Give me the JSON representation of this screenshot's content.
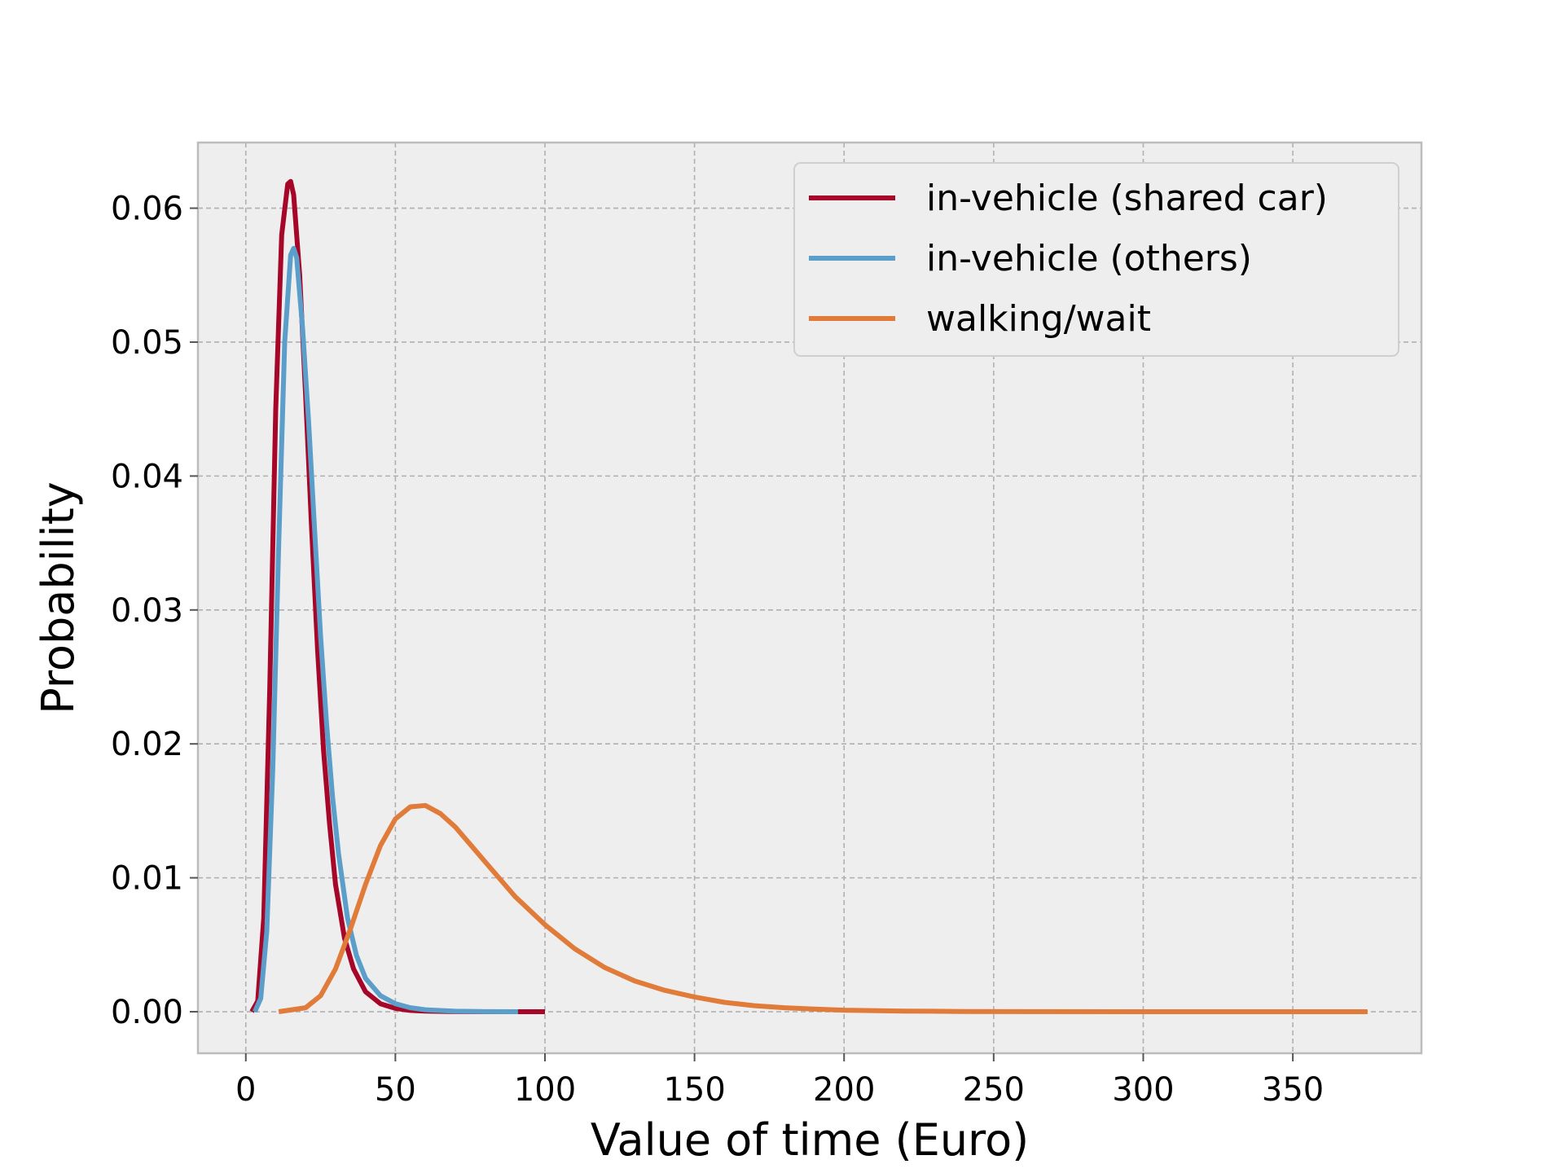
{
  "chart_data": {
    "type": "line",
    "title": "",
    "xlabel": "Value of time (Euro)",
    "ylabel": "Probability",
    "xlim": [
      -16,
      393
    ],
    "ylim": [
      -0.0031,
      0.0649
    ],
    "xticks": [
      0,
      50,
      100,
      150,
      200,
      250,
      300,
      350
    ],
    "yticks": [
      0.0,
      0.01,
      0.02,
      0.03,
      0.04,
      0.05,
      0.06
    ],
    "ytick_labels": [
      "0.00",
      "0.01",
      "0.02",
      "0.03",
      "0.04",
      "0.05",
      "0.06"
    ],
    "grid": true,
    "legend_position": "top-right",
    "series": [
      {
        "name": "in-vehicle (shared car)",
        "color": "#A60628",
        "x": [
          2,
          4,
          6,
          8,
          10,
          12,
          14,
          15,
          16,
          18,
          20,
          22,
          24,
          26,
          28,
          30,
          33,
          36,
          40,
          45,
          50,
          55,
          60,
          70,
          80,
          90,
          100
        ],
        "y": [
          0.0,
          0.0008,
          0.007,
          0.024,
          0.045,
          0.058,
          0.0618,
          0.062,
          0.061,
          0.055,
          0.046,
          0.036,
          0.027,
          0.0195,
          0.014,
          0.0095,
          0.0055,
          0.0032,
          0.0015,
          0.0006,
          0.00025,
          0.0001,
          5e-05,
          1e-05,
          0.0,
          0.0,
          0.0
        ]
      },
      {
        "name": "in-vehicle (others)",
        "color": "#5B9EC9",
        "x": [
          3,
          5,
          7,
          9,
          11,
          13,
          15,
          16,
          17,
          19,
          21,
          23,
          25,
          27,
          29,
          31,
          34,
          37,
          40,
          45,
          50,
          55,
          60,
          70,
          80,
          91
        ],
        "y": [
          0.0,
          0.001,
          0.006,
          0.018,
          0.035,
          0.05,
          0.0565,
          0.057,
          0.0563,
          0.051,
          0.044,
          0.036,
          0.028,
          0.0215,
          0.016,
          0.0118,
          0.007,
          0.0042,
          0.0025,
          0.0012,
          0.0006,
          0.0003,
          0.00015,
          4e-05,
          1e-05,
          0.0
        ]
      },
      {
        "name": "walking/wait",
        "color": "#E07B39",
        "x": [
          11,
          20,
          25,
          30,
          35,
          40,
          45,
          50,
          55,
          60,
          65,
          70,
          75,
          80,
          90,
          100,
          110,
          120,
          130,
          140,
          150,
          160,
          170,
          180,
          190,
          200,
          220,
          240,
          260,
          300,
          340,
          375
        ],
        "y": [
          0.0,
          0.0003,
          0.0012,
          0.0032,
          0.0062,
          0.0095,
          0.0124,
          0.0144,
          0.0153,
          0.0154,
          0.0148,
          0.0138,
          0.0125,
          0.0112,
          0.0086,
          0.0065,
          0.0047,
          0.0033,
          0.0023,
          0.0016,
          0.0011,
          0.0007,
          0.00045,
          0.0003,
          0.0002,
          0.00012,
          5e-05,
          2e-05,
          1e-05,
          0.0,
          0.0,
          0.0
        ]
      }
    ]
  }
}
